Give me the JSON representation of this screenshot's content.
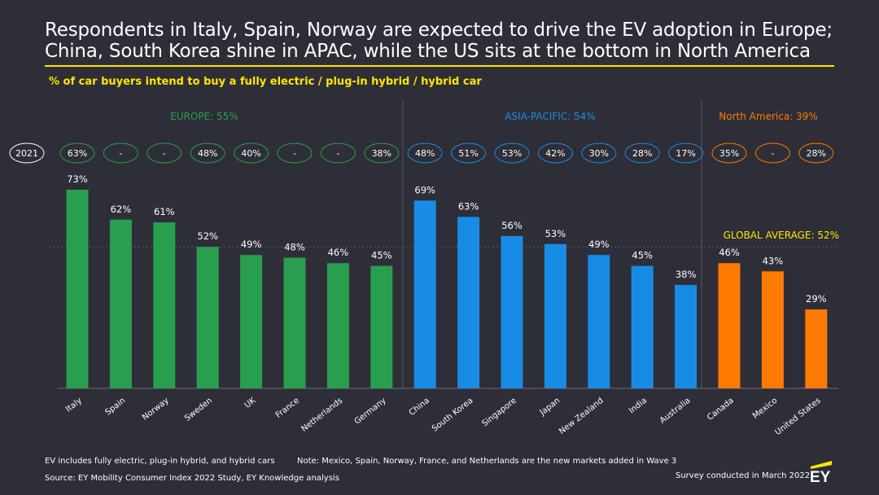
{
  "title": "Respondents in Italy, Spain, Norway are expected to drive the EV adoption in Europe; China, South Korea shine in APAC, while the US sits at the bottom in North America",
  "subtitle": "% of car buyers intend to buy a fully electric / plug-in hybrid / hybrid car",
  "footnotes": {
    "definition": "EV includes fully electric, plug-in hybrid, and hybrid cars",
    "note": "Note: Mexico, Spain, Norway, France, and Netherlands are the new markets added in Wave 3",
    "source": "Source: EY Mobility Consumer Index 2022 Study, EY Knowledge analysis",
    "survey": "Survey conducted in March 2022"
  },
  "logo_text": "EY",
  "colors": {
    "europe": "#2a9e4f",
    "apac": "#188ce5",
    "north_america": "#ff7a00",
    "accent": "#ffe600",
    "background": "#2e2e38",
    "prev_year_circle": "#ffffff"
  },
  "chart_data": {
    "type": "bar",
    "title": "% of car buyers intend to buy a fully electric / plug-in hybrid / hybrid car",
    "ylim": [
      0,
      80
    ],
    "prev_year_label": "2021",
    "global_average": {
      "label": "GLOBAL AVERAGE: 52%",
      "value": 52
    },
    "regions": [
      {
        "key": "europe",
        "label": "EUROPE: 55%",
        "categories": [
          "Italy",
          "Spain",
          "Norway",
          "Sweden",
          "UK",
          "France",
          "Netherlands",
          "Germany"
        ],
        "values": [
          73,
          62,
          61,
          52,
          49,
          48,
          46,
          45
        ],
        "value_labels": [
          "73%",
          "62%",
          "61%",
          "52%",
          "49%",
          "48%",
          "46%",
          "45%"
        ],
        "prev_year": [
          "63%",
          "-",
          "-",
          "48%",
          "40%",
          "-",
          "-",
          "38%"
        ]
      },
      {
        "key": "apac",
        "label": "ASIA-PACIFIC: 54%",
        "categories": [
          "China",
          "South Korea",
          "Singapore",
          "Japan",
          "New Zealand",
          "India",
          "Australia"
        ],
        "values": [
          69,
          63,
          56,
          53,
          49,
          45,
          38
        ],
        "value_labels": [
          "69%",
          "63%",
          "56%",
          "53%",
          "49%",
          "45%",
          "38%"
        ],
        "prev_year": [
          "48%",
          "51%",
          "53%",
          "42%",
          "30%",
          "28%",
          "17%"
        ]
      },
      {
        "key": "north_america",
        "label": "North America: 39%",
        "categories": [
          "Canada",
          "Mexico",
          "United States"
        ],
        "values": [
          46,
          43,
          29
        ],
        "value_labels": [
          "46%",
          "43%",
          "29%"
        ],
        "prev_year": [
          "35%",
          "-",
          "28%"
        ]
      }
    ]
  }
}
